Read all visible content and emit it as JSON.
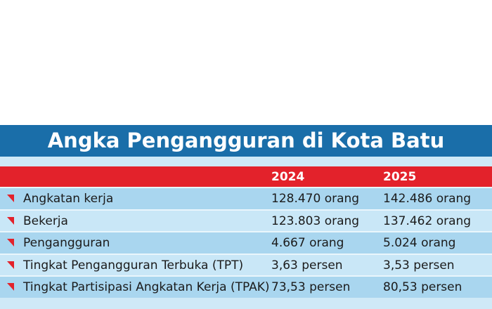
{
  "header": {
    "title": "Angka Pengangguran di Kota Batu"
  },
  "table": {
    "columns": [
      "2024",
      "2025"
    ],
    "rows": [
      {
        "label": "Angkatan kerja",
        "cells": [
          "128.470 orang",
          "142.486 orang"
        ]
      },
      {
        "label": "Bekerja",
        "cells": [
          "123.803 orang",
          "137.462 orang"
        ]
      },
      {
        "label": "Pengangguran",
        "cells": [
          "4.667 orang",
          "5.024 orang"
        ]
      },
      {
        "label": "Tingkat Pengangguran Terbuka (TPT)",
        "cells": [
          "3,63 persen",
          "3,53 persen"
        ]
      },
      {
        "label": "Tingkat Partisipasi Angkatan Kerja (TPAK)",
        "cells": [
          "73,53 persen",
          "80,53 persen"
        ]
      }
    ]
  }
}
